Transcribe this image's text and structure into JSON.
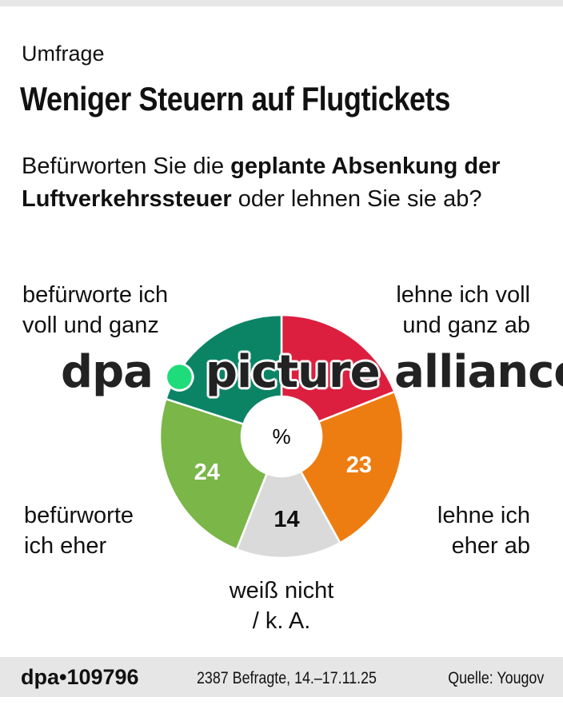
{
  "header": {
    "kicker": "Umfrage",
    "title": "Weniger Steuern auf Flugtickets",
    "question_pre": "Befürworten Sie die ",
    "question_bold": "geplante Absenkung der Luftverkehrssteuer",
    "question_post": " oder lehnen Sie sie ab?"
  },
  "chart_data": {
    "type": "pie",
    "subtype": "donut",
    "center_label": "%",
    "categories": [
      "lehne ich voll und ganz ab",
      "lehne ich eher ab",
      "weiß nicht / k. A.",
      "befürworte ich eher",
      "befürworte ich voll und ganz"
    ],
    "values": [
      19,
      23,
      14,
      24,
      20
    ],
    "value_labels_shown": [
      false,
      true,
      true,
      true,
      false
    ],
    "colors": [
      "#dc1f3f",
      "#ee7d11",
      "#dadada",
      "#7ab648",
      "#0b8466"
    ],
    "label_colors": [
      "#ffffff",
      "#ffffff",
      "#111111",
      "#ffffff",
      "#ffffff"
    ]
  },
  "labels": {
    "red_l1": "lehne ich voll",
    "red_l2": "und ganz ab",
    "orange_l1": "lehne ich",
    "orange_l2": "eher ab",
    "grey_l1": "weiß nicht",
    "grey_l2": "/ k. A.",
    "green_l1": "befürworte",
    "green_l2": "ich eher",
    "teal_l1": "befürworte ich",
    "teal_l2": "voll und ganz"
  },
  "watermark": {
    "left": "dpa",
    "right": "picture alliance"
  },
  "footer": {
    "id": "dpa•109796",
    "meta": "2387 Befragte, 14.–17.11.25",
    "source": "Quelle: Yougov"
  }
}
